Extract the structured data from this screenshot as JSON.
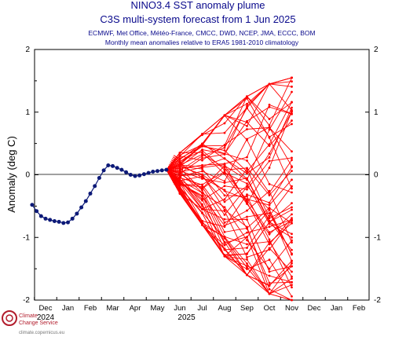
{
  "chart_data": {
    "type": "line",
    "title": "NINO3.4 SST anomaly plume",
    "subtitle": "C3S multi-system forecast from 1 Jun 2025",
    "systems_line": "ECMWF, Met Office, Météo-France, CMCC, DWD, NCEP, JMA, ECCC, BOM",
    "note_line": "Monthly mean anomalies relative to ERA5 1981-2010 climatology",
    "ylabel": "Anomaly (deg C)",
    "ylim": [
      -2,
      2
    ],
    "y_ticks": [
      "-2",
      "-1",
      "0",
      "1",
      "2"
    ],
    "x_month_labels": [
      "Dec",
      "Jan",
      "Feb",
      "Mar",
      "Apr",
      "May",
      "Jun",
      "Jul",
      "Aug",
      "Sep",
      "Oct",
      "Nov",
      "Dec",
      "Jan",
      "Feb"
    ],
    "x_year_labels": [
      "2024",
      "2025"
    ],
    "observed_series": {
      "color": "#0d1a78",
      "x_month_index": [
        -0.6,
        -0.4,
        -0.2,
        0.0,
        0.2,
        0.4,
        0.6,
        0.8,
        1.0,
        1.2,
        1.4,
        1.6,
        1.8,
        2.0,
        2.2,
        2.4,
        2.6,
        2.8,
        3.0,
        3.2,
        3.4,
        3.6,
        3.8,
        4.0,
        4.2,
        4.4,
        4.6,
        4.8,
        5.0,
        5.2,
        5.4
      ],
      "values": [
        -0.48,
        -0.58,
        -0.66,
        -0.7,
        -0.72,
        -0.74,
        -0.75,
        -0.77,
        -0.76,
        -0.7,
        -0.62,
        -0.52,
        -0.42,
        -0.3,
        -0.18,
        -0.05,
        0.07,
        0.15,
        0.14,
        0.11,
        0.08,
        0.04,
        0.0,
        -0.02,
        -0.01,
        0.01,
        0.03,
        0.05,
        0.06,
        0.07,
        0.08
      ]
    },
    "forecast_plume": {
      "color": "#ff0000",
      "start_month_index": 5.4,
      "start_value": 0.08,
      "months": [
        "Jun",
        "Jul",
        "Aug",
        "Sep",
        "Oct",
        "Nov"
      ],
      "member_count": 60,
      "range_low": [
        -0.3,
        -0.8,
        -1.3,
        -1.6,
        -1.9,
        -2.0
      ],
      "range_high": [
        0.35,
        0.65,
        0.95,
        1.25,
        1.45,
        1.55
      ]
    },
    "grid": false,
    "zero_line": true
  },
  "logo": {
    "line1": "Climate",
    "line2": "Change Service",
    "url": "climate.copernicus.eu"
  }
}
